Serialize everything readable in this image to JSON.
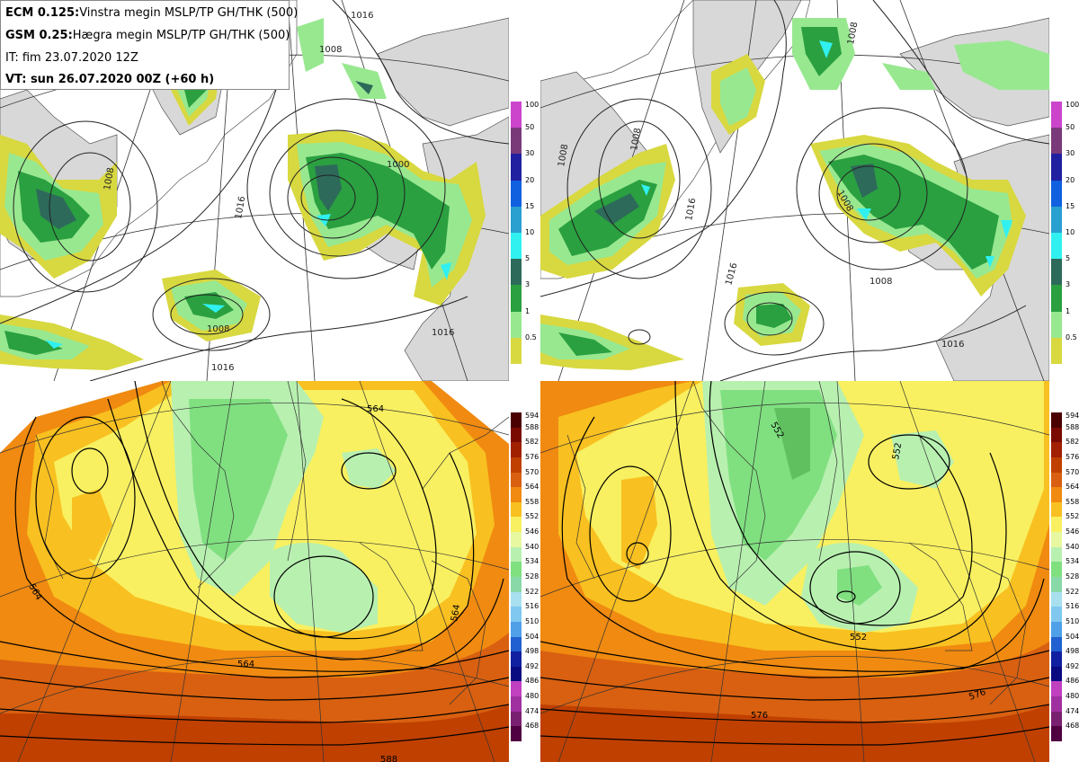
{
  "header": {
    "ecm_label": "ECM 0.125:",
    "ecm_text": "Vinstra megin MSLP/TP GH/THK (500)",
    "gsm_label": "GSM 0.25:",
    "gsm_text": "Hægra megin MSLP/TP GH/THK (500)",
    "it_text": "IT: fim 23.07.2020 12Z",
    "vt_text": "VT: sun 26.07.2020 00Z (+60 h)"
  },
  "precip_legend": {
    "labels": [
      "100",
      "50",
      "30",
      "20",
      "15",
      "10",
      "5",
      "3",
      "1",
      "0.5"
    ],
    "colors": [
      "#cc44cc",
      "#7a3a7a",
      "#2020a0",
      "#1060e0",
      "#2aa0d0",
      "#30f0f0",
      "#2d6a5a",
      "#2aa040",
      "#98e890",
      "#d8d840"
    ]
  },
  "thk_legend": {
    "labels": [
      "594",
      "588",
      "582",
      "576",
      "570",
      "564",
      "558",
      "552",
      "546",
      "540",
      "534",
      "528",
      "522",
      "516",
      "510",
      "504",
      "498",
      "492",
      "486",
      "480",
      "474",
      "468"
    ],
    "colors": [
      "#4a0000",
      "#7a0a00",
      "#a02000",
      "#c04000",
      "#d86010",
      "#f08a10",
      "#f8c020",
      "#f8f060",
      "#e8f8a0",
      "#b8f0b0",
      "#80e080",
      "#88d8a8",
      "#a8e0f0",
      "#80c8f0",
      "#50a0e8",
      "#2060d0",
      "#1020a0",
      "#0a0a80",
      "#c040c0",
      "#a030a0",
      "#7a2070",
      "#500040"
    ]
  },
  "panels": {
    "top_left": {
      "isobar_labels": [
        "1016",
        "1008",
        "1000",
        "1008",
        "1016",
        "1008",
        "1016",
        "1016"
      ]
    },
    "top_right": {
      "isobar_labels": [
        "1008",
        "1008",
        "1016",
        "1016",
        "1008",
        "1016",
        "1008",
        "1008"
      ]
    },
    "bottom_left": {
      "contour_labels": [
        "564",
        "564",
        "564",
        "564",
        "588"
      ]
    },
    "bottom_right": {
      "contour_labels": [
        "552",
        "552",
        "552",
        "576",
        "576"
      ]
    }
  }
}
